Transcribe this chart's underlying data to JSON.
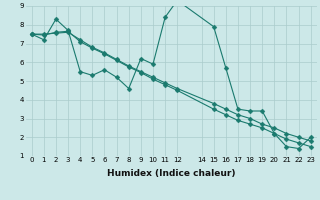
{
  "xlabel": "Humidex (Indice chaleur)",
  "background_color": "#cce8e8",
  "grid_color": "#aacccc",
  "line_color": "#1a7a6e",
  "xlim": [
    -0.5,
    23.5
  ],
  "ylim": [
    1,
    9
  ],
  "xtick_positions": [
    0,
    1,
    2,
    3,
    4,
    5,
    6,
    7,
    8,
    9,
    10,
    11,
    12,
    14,
    15,
    16,
    17,
    18,
    19,
    20,
    21,
    22,
    23
  ],
  "xtick_labels": [
    "0",
    "1",
    "2",
    "3",
    "4",
    "5",
    "6",
    "7",
    "8",
    "9",
    "10",
    "11",
    "12",
    "14",
    "15",
    "16",
    "17",
    "18",
    "19",
    "20",
    "21",
    "22",
    "23"
  ],
  "yticks": [
    1,
    2,
    3,
    4,
    5,
    6,
    7,
    8,
    9
  ],
  "line1_x": [
    0,
    1,
    2,
    3,
    4,
    5,
    6,
    7,
    8,
    9,
    10,
    11,
    12,
    15,
    16,
    17,
    18,
    19,
    20,
    21,
    22,
    23
  ],
  "line1_y": [
    7.5,
    7.2,
    8.3,
    7.7,
    5.5,
    5.3,
    5.6,
    5.2,
    4.6,
    6.2,
    5.9,
    8.4,
    9.3,
    7.9,
    5.7,
    3.5,
    3.4,
    3.4,
    2.2,
    1.5,
    1.4,
    2.0
  ],
  "line2_x": [
    0,
    1,
    2,
    3,
    4,
    5,
    6,
    7,
    8,
    9,
    10,
    11,
    12,
    15,
    16,
    17,
    18,
    19,
    20,
    21,
    22,
    23
  ],
  "line2_y": [
    7.5,
    7.45,
    7.6,
    7.65,
    7.1,
    6.75,
    6.45,
    6.1,
    5.75,
    5.45,
    5.1,
    4.8,
    4.5,
    3.5,
    3.2,
    2.9,
    2.7,
    2.5,
    2.2,
    1.9,
    1.7,
    1.5
  ],
  "line3_x": [
    0,
    1,
    2,
    3,
    4,
    5,
    6,
    7,
    8,
    9,
    10,
    11,
    12,
    15,
    16,
    17,
    18,
    19,
    20,
    21,
    22,
    23
  ],
  "line3_y": [
    7.5,
    7.5,
    7.55,
    7.6,
    7.2,
    6.8,
    6.5,
    6.15,
    5.8,
    5.5,
    5.2,
    4.9,
    4.6,
    3.8,
    3.5,
    3.2,
    3.0,
    2.7,
    2.5,
    2.2,
    2.0,
    1.8
  ],
  "linewidth": 0.8,
  "markersize": 2.5,
  "xlabel_fontsize": 6.5,
  "tick_fontsize": 5
}
